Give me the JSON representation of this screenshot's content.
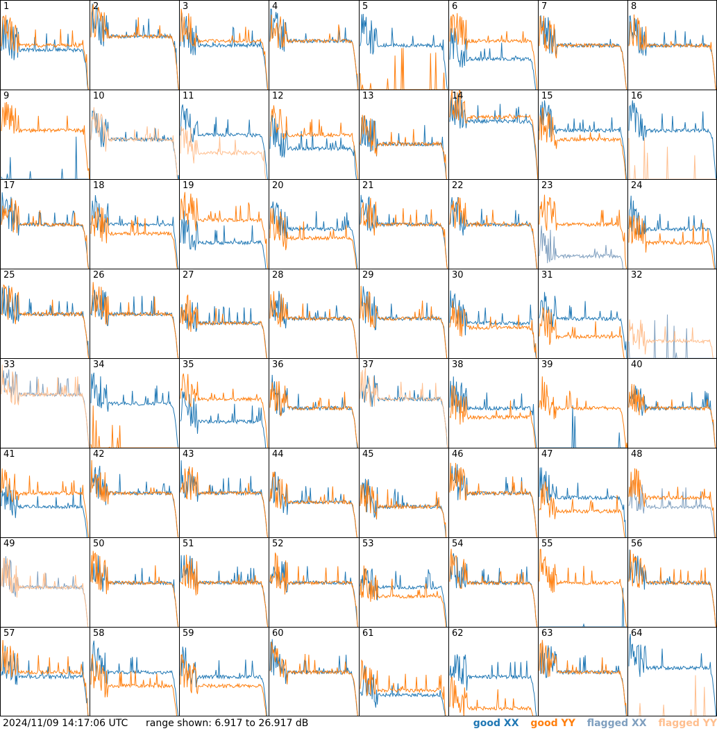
{
  "footer": {
    "timestamp": "2024/11/09 14:17:06 UTC",
    "range_text": "range shown: 6.917 to 26.917 dB"
  },
  "legend": [
    {
      "label": "good XX",
      "color": "#1f77b4"
    },
    {
      "label": "good YY",
      "color": "#ff7f0e"
    },
    {
      "label": "flagged XX",
      "color": "#7f9fbf"
    },
    {
      "label": "flagged YY",
      "color": "#ffbf8f"
    }
  ],
  "chart_data": {
    "type": "line",
    "layout": "8x8 small multiples",
    "y_range_db": [
      6.917,
      26.917
    ],
    "x_axis": "frequency channel",
    "panels": [
      {
        "id": "1",
        "xx": "good",
        "yy": "good",
        "xx_level": 16,
        "yy_level": 17
      },
      {
        "id": "2",
        "xx": "good",
        "yy": "good",
        "xx_level": 19,
        "yy_level": 19
      },
      {
        "id": "3",
        "xx": "good",
        "yy": "good",
        "xx_level": 17,
        "yy_level": 18
      },
      {
        "id": "4",
        "xx": "good",
        "yy": "good",
        "xx_level": 18,
        "yy_level": 18
      },
      {
        "id": "5",
        "xx": "good",
        "yy": "good",
        "xx_level": 17,
        "yy_level": 0
      },
      {
        "id": "6",
        "xx": "good",
        "yy": "good",
        "xx_level": 14,
        "yy_level": 18
      },
      {
        "id": "7",
        "xx": "good",
        "yy": "good",
        "xx_level": 17,
        "yy_level": 17
      },
      {
        "id": "8",
        "xx": "good",
        "yy": "good",
        "xx_level": 17,
        "yy_level": 17
      },
      {
        "id": "9",
        "xx": "good",
        "yy": "good",
        "xx_level": 0,
        "yy_level": 18
      },
      {
        "id": "10",
        "xx": "good",
        "yy": "flagged",
        "xx_level": 16,
        "yy_level": 16
      },
      {
        "id": "11",
        "xx": "good",
        "yy": "flagged",
        "xx_level": 17,
        "yy_level": 13
      },
      {
        "id": "12",
        "xx": "good",
        "yy": "good",
        "xx_level": 14,
        "yy_level": 17
      },
      {
        "id": "13",
        "xx": "good",
        "yy": "good",
        "xx_level": 15,
        "yy_level": 15
      },
      {
        "id": "14",
        "xx": "good",
        "yy": "good",
        "xx_level": 20,
        "yy_level": 21
      },
      {
        "id": "15",
        "xx": "good",
        "yy": "good",
        "xx_level": 18,
        "yy_level": 16
      },
      {
        "id": "16",
        "xx": "good",
        "yy": "flagged",
        "xx_level": 18,
        "yy_level": 0
      },
      {
        "id": "17",
        "xx": "good",
        "yy": "good",
        "xx_level": 17,
        "yy_level": 17
      },
      {
        "id": "18",
        "xx": "good",
        "yy": "good",
        "xx_level": 17,
        "yy_level": 15
      },
      {
        "id": "19",
        "xx": "good",
        "yy": "good",
        "xx_level": 13,
        "yy_level": 18
      },
      {
        "id": "20",
        "xx": "good",
        "yy": "good",
        "xx_level": 16,
        "yy_level": 14
      },
      {
        "id": "21",
        "xx": "good",
        "yy": "good",
        "xx_level": 17,
        "yy_level": 17
      },
      {
        "id": "22",
        "xx": "good",
        "yy": "good",
        "xx_level": 17,
        "yy_level": 17
      },
      {
        "id": "23",
        "xx": "flagged",
        "yy": "good",
        "xx_level": 10,
        "yy_level": 17
      },
      {
        "id": "24",
        "xx": "good",
        "yy": "good",
        "xx_level": 16,
        "yy_level": 13
      },
      {
        "id": "25",
        "xx": "good",
        "yy": "good",
        "xx_level": 17,
        "yy_level": 17
      },
      {
        "id": "26",
        "xx": "good",
        "yy": "good",
        "xx_level": 17,
        "yy_level": 17
      },
      {
        "id": "27",
        "xx": "good",
        "yy": "good",
        "xx_level": 15,
        "yy_level": 15
      },
      {
        "id": "28",
        "xx": "good",
        "yy": "good",
        "xx_level": 16,
        "yy_level": 16
      },
      {
        "id": "29",
        "xx": "good",
        "yy": "good",
        "xx_level": 16,
        "yy_level": 16
      },
      {
        "id": "30",
        "xx": "good",
        "yy": "good",
        "xx_level": 15,
        "yy_level": 14
      },
      {
        "id": "31",
        "xx": "good",
        "yy": "good",
        "xx_level": 16,
        "yy_level": 12
      },
      {
        "id": "32",
        "xx": "flagged",
        "yy": "flagged",
        "xx_level": 0,
        "yy_level": 11
      },
      {
        "id": "33",
        "xx": "flagged",
        "yy": "flagged",
        "xx_level": 19,
        "yy_level": 19
      },
      {
        "id": "34",
        "xx": "good",
        "yy": "good",
        "xx_level": 17,
        "yy_level": 0
      },
      {
        "id": "35",
        "xx": "good",
        "yy": "good",
        "xx_level": 13,
        "yy_level": 18
      },
      {
        "id": "36",
        "xx": "good",
        "yy": "good",
        "xx_level": 16,
        "yy_level": 16
      },
      {
        "id": "37",
        "xx": "good",
        "yy": "flagged",
        "xx_level": 18,
        "yy_level": 18
      },
      {
        "id": "38",
        "xx": "good",
        "yy": "good",
        "xx_level": 16,
        "yy_level": 14
      },
      {
        "id": "39",
        "xx": "good",
        "yy": "good",
        "xx_level": 0,
        "yy_level": 16
      },
      {
        "id": "40",
        "xx": "good",
        "yy": "good",
        "xx_level": 16,
        "yy_level": 16
      },
      {
        "id": "41",
        "xx": "good",
        "yy": "good",
        "xx_level": 14,
        "yy_level": 17
      },
      {
        "id": "42",
        "xx": "good",
        "yy": "good",
        "xx_level": 17,
        "yy_level": 17
      },
      {
        "id": "43",
        "xx": "good",
        "yy": "good",
        "xx_level": 17,
        "yy_level": 17
      },
      {
        "id": "44",
        "xx": "good",
        "yy": "good",
        "xx_level": 15,
        "yy_level": 15
      },
      {
        "id": "45",
        "xx": "good",
        "yy": "good",
        "xx_level": 14,
        "yy_level": 14
      },
      {
        "id": "46",
        "xx": "good",
        "yy": "good",
        "xx_level": 17,
        "yy_level": 17
      },
      {
        "id": "47",
        "xx": "good",
        "yy": "good",
        "xx_level": 16,
        "yy_level": 13
      },
      {
        "id": "48",
        "xx": "flagged",
        "yy": "good",
        "xx_level": 14,
        "yy_level": 16
      },
      {
        "id": "49",
        "xx": "flagged",
        "yy": "flagged",
        "xx_level": 16,
        "yy_level": 16
      },
      {
        "id": "50",
        "xx": "good",
        "yy": "good",
        "xx_level": 17,
        "yy_level": 17
      },
      {
        "id": "51",
        "xx": "good",
        "yy": "good",
        "xx_level": 17,
        "yy_level": 17
      },
      {
        "id": "52",
        "xx": "good",
        "yy": "good",
        "xx_level": 17,
        "yy_level": 17
      },
      {
        "id": "53",
        "xx": "good",
        "yy": "good",
        "xx_level": 16,
        "yy_level": 14
      },
      {
        "id": "54",
        "xx": "good",
        "yy": "good",
        "xx_level": 17,
        "yy_level": 17
      },
      {
        "id": "55",
        "xx": "good",
        "yy": "good",
        "xx_level": 0,
        "yy_level": 17
      },
      {
        "id": "56",
        "xx": "good",
        "yy": "good",
        "xx_level": 17,
        "yy_level": 17
      },
      {
        "id": "57",
        "xx": "good",
        "yy": "good",
        "xx_level": 16,
        "yy_level": 17
      },
      {
        "id": "58",
        "xx": "good",
        "yy": "good",
        "xx_level": 17,
        "yy_level": 14
      },
      {
        "id": "59",
        "xx": "good",
        "yy": "good",
        "xx_level": 16,
        "yy_level": 14
      },
      {
        "id": "60",
        "xx": "good",
        "yy": "good",
        "xx_level": 17,
        "yy_level": 17
      },
      {
        "id": "61",
        "xx": "good",
        "yy": "good",
        "xx_level": 12,
        "yy_level": 13
      },
      {
        "id": "62",
        "xx": "good",
        "yy": "good",
        "xx_level": 16,
        "yy_level": 9
      },
      {
        "id": "63",
        "xx": "good",
        "yy": "good",
        "xx_level": 17,
        "yy_level": 17
      },
      {
        "id": "64",
        "xx": "good",
        "yy": "flagged",
        "xx_level": 18,
        "yy_level": 0
      }
    ]
  }
}
